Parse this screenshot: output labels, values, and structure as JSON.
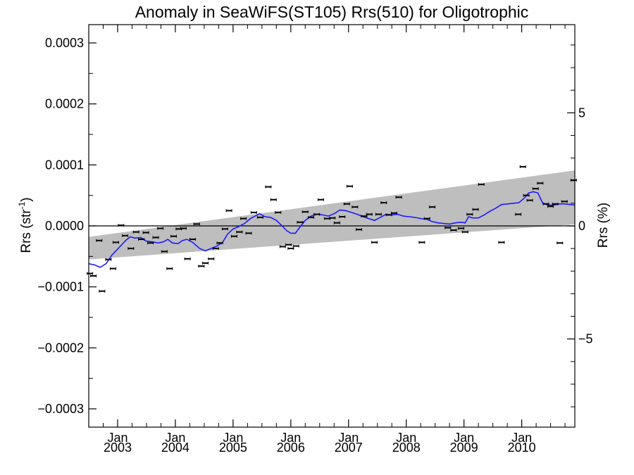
{
  "chart_data": {
    "type": "scatter",
    "title": "Anomaly in SeaWiFS(ST105) Rrs(510) for Oligotrophic",
    "ylabel": "Rrs (str",
    "ylabel_exp": "-1",
    "ylabel_close": ")",
    "y2label": "Rrs (%)",
    "ylim": [
      -0.00033,
      0.00033
    ],
    "y2lim": [
      -8.9,
      8.9
    ],
    "xlim": [
      2002.5,
      2010.92
    ],
    "yticks": [
      {
        "v": 0.0003,
        "label": "0.0003"
      },
      {
        "v": 0.0002,
        "label": "0.0002"
      },
      {
        "v": 0.0001,
        "label": "0.0001"
      },
      {
        "v": 0.0,
        "label": "0.0000"
      },
      {
        "v": -0.0001,
        "label": "−0.0001"
      },
      {
        "v": -0.0002,
        "label": "−0.0002"
      },
      {
        "v": -0.0003,
        "label": "−0.0003"
      }
    ],
    "y2ticks": [
      {
        "v": 5,
        "label": "5"
      },
      {
        "v": 0,
        "label": "0"
      },
      {
        "v": -5,
        "label": "−5"
      }
    ],
    "xticks": [
      {
        "v": 2003.0,
        "month": "Jan",
        "year": "2003"
      },
      {
        "v": 2004.0,
        "month": "Jan",
        "year": "2004"
      },
      {
        "v": 2005.0,
        "month": "Jan",
        "year": "2005"
      },
      {
        "v": 2006.0,
        "month": "Jan",
        "year": "2006"
      },
      {
        "v": 2007.0,
        "month": "Jan",
        "year": "2007"
      },
      {
        "v": 2008.0,
        "month": "Jan",
        "year": "2008"
      },
      {
        "v": 2009.0,
        "month": "Jan",
        "year": "2009"
      },
      {
        "v": 2010.0,
        "month": "Jan",
        "year": "2010"
      }
    ],
    "band": {
      "x": [
        2002.5,
        2010.92
      ],
      "upper": [
        -1.8e-05,
        9.1e-05
      ],
      "lower": [
        -5.5e-05,
        2.5e-06
      ]
    },
    "zero_line": 0.0,
    "colors": {
      "trend": "#1a1aff",
      "band": "#bebebe",
      "points": "#000000"
    },
    "points": [
      [
        2002.52,
        -7.8e-05
      ],
      [
        2002.58,
        -8.2e-05
      ],
      [
        2002.68,
        -2.4e-05
      ],
      [
        2002.73,
        -0.000107
      ],
      [
        2002.84,
        -5.5e-05
      ],
      [
        2002.92,
        -7e-05
      ],
      [
        2002.97,
        -2.7e-05
      ],
      [
        2003.06,
        1e-06
      ],
      [
        2003.13,
        -1.6e-05
      ],
      [
        2003.23,
        -3.7e-05
      ],
      [
        2003.32,
        -1e-05
      ],
      [
        2003.41,
        -2.2e-05
      ],
      [
        2003.49,
        -1.1e-05
      ],
      [
        2003.57,
        -2.8e-05
      ],
      [
        2003.66,
        -1.9e-05
      ],
      [
        2003.74,
        -4e-06
      ],
      [
        2003.81,
        -4.2e-05
      ],
      [
        2003.9,
        -7e-05
      ],
      [
        2003.97,
        -1.7e-05
      ],
      [
        2004.06,
        -5e-06
      ],
      [
        2004.14,
        -4e-06
      ],
      [
        2004.21,
        -5.4e-05
      ],
      [
        2004.3,
        -2.2e-05
      ],
      [
        2004.37,
        3e-06
      ],
      [
        2004.45,
        -6.6e-05
      ],
      [
        2004.52,
        -6.1e-05
      ],
      [
        2004.62,
        -5.4e-05
      ],
      [
        2004.7,
        -3.7e-05
      ],
      [
        2004.77,
        -2.8e-05
      ],
      [
        2004.86,
        -5e-06
      ],
      [
        2004.93,
        2.5e-05
      ],
      [
        2005.02,
        -1.7e-05
      ],
      [
        2005.11,
        -1e-05
      ],
      [
        2005.18,
        1.2e-05
      ],
      [
        2005.27,
        -1.2e-05
      ],
      [
        2005.36,
        2.2e-05
      ],
      [
        2005.47,
        1.4e-05
      ],
      [
        2005.61,
        6.4e-05
      ],
      [
        2005.7,
        4.3e-05
      ],
      [
        2005.78,
        2.2e-05
      ],
      [
        2005.86,
        -3.4e-05
      ],
      [
        2005.96,
        -3.1e-05
      ],
      [
        2006.0,
        -3.7e-05
      ],
      [
        2006.09,
        -3.3e-05
      ],
      [
        2006.16,
        6e-06
      ],
      [
        2006.25,
        2.3e-05
      ],
      [
        2006.35,
        1.4e-05
      ],
      [
        2006.45,
        1.9e-05
      ],
      [
        2006.52,
        4.3e-05
      ],
      [
        2006.63,
        1.2e-05
      ],
      [
        2006.72,
        1.3e-05
      ],
      [
        2006.8,
        5e-06
      ],
      [
        2006.89,
        1.5e-05
      ],
      [
        2006.97,
        3.6e-05
      ],
      [
        2007.02,
        6.5e-05
      ],
      [
        2007.11,
        3.1e-05
      ],
      [
        2007.18,
        -6e-06
      ],
      [
        2007.27,
        1.6e-05
      ],
      [
        2007.36,
        1.9e-05
      ],
      [
        2007.45,
        -2.7e-05
      ],
      [
        2007.52,
        1.9e-05
      ],
      [
        2007.61,
        3.8e-05
      ],
      [
        2007.7,
        1.8e-05
      ],
      [
        2007.79,
        2.1e-05
      ],
      [
        2007.87,
        4.7e-05
      ],
      [
        2008.27,
        -2.7e-05
      ],
      [
        2008.36,
        1.2e-05
      ],
      [
        2008.45,
        3.1e-05
      ],
      [
        2008.72,
        -3e-06
      ],
      [
        2008.82,
        -7e-06
      ],
      [
        2008.95,
        -4e-06
      ],
      [
        2009.02,
        -1e-05
      ],
      [
        2009.1,
        1.9e-05
      ],
      [
        2009.2,
        2.7e-05
      ],
      [
        2009.3,
        6.8e-05
      ],
      [
        2009.65,
        -2.7e-05
      ],
      [
        2009.94,
        1.9e-05
      ],
      [
        2010.02,
        9.7e-05
      ],
      [
        2010.08,
        5e-05
      ],
      [
        2010.14,
        4.2e-05
      ],
      [
        2010.24,
        6.1e-05
      ],
      [
        2010.32,
        7e-05
      ],
      [
        2010.42,
        3.6e-05
      ],
      [
        2010.5,
        3.2e-05
      ],
      [
        2010.58,
        3.6e-05
      ],
      [
        2010.66,
        -2.8e-05
      ],
      [
        2010.74,
        4e-05
      ],
      [
        2010.9,
        7.5e-05
      ]
    ],
    "trend": [
      [
        2002.5,
        -6.2e-05
      ],
      [
        2002.6,
        -6.4e-05
      ],
      [
        2002.7,
        -6.8e-05
      ],
      [
        2002.8,
        -6.2e-05
      ],
      [
        2002.9,
        -4.8e-05
      ],
      [
        2003.0,
        -3.8e-05
      ],
      [
        2003.08,
        -3e-05
      ],
      [
        2003.15,
        -2.3e-05
      ],
      [
        2003.22,
        -1.8e-05
      ],
      [
        2003.3,
        -2e-05
      ],
      [
        2003.4,
        -1.9e-05
      ],
      [
        2003.5,
        -2.5e-05
      ],
      [
        2003.6,
        -2.6e-05
      ],
      [
        2003.7,
        -2.8e-05
      ],
      [
        2003.8,
        -2.6e-05
      ],
      [
        2003.87,
        -2.2e-05
      ],
      [
        2003.95,
        -2.8e-05
      ],
      [
        2004.05,
        -2.9e-05
      ],
      [
        2004.12,
        -2.4e-05
      ],
      [
        2004.2,
        -2.2e-05
      ],
      [
        2004.3,
        -2.7e-05
      ],
      [
        2004.42,
        -3.7e-05
      ],
      [
        2004.52,
        -4.1e-05
      ],
      [
        2004.62,
        -3.7e-05
      ],
      [
        2004.72,
        -3.3e-05
      ],
      [
        2004.82,
        -2.7e-05
      ],
      [
        2004.9,
        -1.4e-05
      ],
      [
        2005.0,
        -5e-06
      ],
      [
        2005.1,
        -1e-06
      ],
      [
        2005.2,
        4e-06
      ],
      [
        2005.3,
        1.2e-05
      ],
      [
        2005.4,
        1.7e-05
      ],
      [
        2005.46,
        2e-05
      ],
      [
        2005.55,
        1.5e-05
      ],
      [
        2005.65,
        1.4e-05
      ],
      [
        2005.75,
        9e-06
      ],
      [
        2005.85,
        0.0
      ],
      [
        2005.93,
        -8e-06
      ],
      [
        2006.0,
        -1.2e-05
      ],
      [
        2006.08,
        -1.2e-05
      ],
      [
        2006.15,
        -3e-06
      ],
      [
        2006.25,
        9e-06
      ],
      [
        2006.35,
        1.6e-05
      ],
      [
        2006.45,
        1.9e-05
      ],
      [
        2006.55,
        1.8e-05
      ],
      [
        2006.65,
        1.6e-05
      ],
      [
        2006.75,
        2e-05
      ],
      [
        2006.85,
        2.6e-05
      ],
      [
        2006.95,
        2.5e-05
      ],
      [
        2007.05,
        2.2e-05
      ],
      [
        2007.15,
        1.9e-05
      ],
      [
        2007.25,
        1.5e-05
      ],
      [
        2007.35,
        1.2e-05
      ],
      [
        2007.45,
        9e-06
      ],
      [
        2007.55,
        1.4e-05
      ],
      [
        2007.65,
        1.9e-05
      ],
      [
        2007.75,
        1.8e-05
      ],
      [
        2007.85,
        1.9e-05
      ],
      [
        2007.95,
        1.6e-05
      ],
      [
        2008.05,
        1.5e-05
      ],
      [
        2008.15,
        1.4e-05
      ],
      [
        2008.25,
        1.2e-05
      ],
      [
        2008.35,
        1.1e-05
      ],
      [
        2008.45,
        7e-06
      ],
      [
        2008.55,
        5e-06
      ],
      [
        2008.65,
        4e-06
      ],
      [
        2008.75,
        3e-06
      ],
      [
        2008.85,
        5e-06
      ],
      [
        2008.95,
        6e-06
      ],
      [
        2009.02,
        5e-06
      ],
      [
        2009.08,
        1.5e-05
      ],
      [
        2009.15,
        1.3e-05
      ],
      [
        2009.25,
        1.3e-05
      ],
      [
        2009.35,
        1.8e-05
      ],
      [
        2009.45,
        2.4e-05
      ],
      [
        2009.55,
        2.9e-05
      ],
      [
        2009.65,
        3.5e-05
      ],
      [
        2009.75,
        3.6e-05
      ],
      [
        2009.85,
        3.7e-05
      ],
      [
        2009.95,
        3.8e-05
      ],
      [
        2010.05,
        4.6e-05
      ],
      [
        2010.12,
        5.4e-05
      ],
      [
        2010.2,
        5.6e-05
      ],
      [
        2010.28,
        5.4e-05
      ],
      [
        2010.36,
        3.8e-05
      ],
      [
        2010.45,
        3.4e-05
      ],
      [
        2010.55,
        3.4e-05
      ],
      [
        2010.65,
        3.6e-05
      ],
      [
        2010.75,
        3.6e-05
      ],
      [
        2010.85,
        3.5e-05
      ],
      [
        2010.92,
        3.4e-05
      ]
    ]
  }
}
